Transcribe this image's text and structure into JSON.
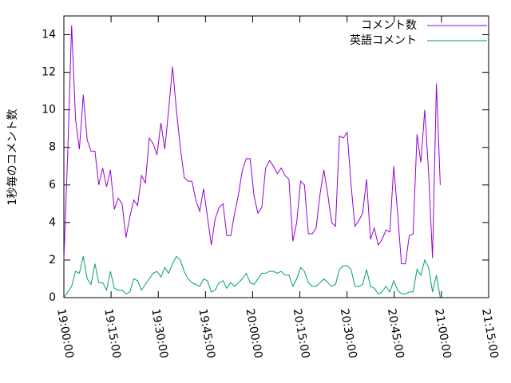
{
  "chart_data": {
    "type": "line",
    "ylabel": "1秒毎のコメント数",
    "x": [
      "19:00:00",
      "19:01:14",
      "19:02:28",
      "19:03:42",
      "19:04:56",
      "19:06:10",
      "19:07:24",
      "19:08:38",
      "19:09:52",
      "19:11:06",
      "19:12:20",
      "19:13:34",
      "19:14:48",
      "19:16:02",
      "19:17:16",
      "19:18:30",
      "19:19:44",
      "19:20:58",
      "19:22:12",
      "19:23:26",
      "19:24:40",
      "19:25:54",
      "19:27:08",
      "19:28:22",
      "19:29:36",
      "19:30:50",
      "19:32:04",
      "19:33:18",
      "19:34:32",
      "19:35:46",
      "19:37:00",
      "19:38:14",
      "19:39:28",
      "19:40:42",
      "19:41:56",
      "19:43:10",
      "19:44:24",
      "19:45:38",
      "19:46:52",
      "19:48:06",
      "19:49:20",
      "19:50:34",
      "19:51:48",
      "19:53:02",
      "19:54:16",
      "19:55:30",
      "19:56:44",
      "19:57:58",
      "19:59:12",
      "20:00:26",
      "20:01:40",
      "20:02:54",
      "20:04:08",
      "20:05:22",
      "20:06:36",
      "20:07:50",
      "20:09:04",
      "20:10:18",
      "20:11:32",
      "20:12:46",
      "20:14:00",
      "20:15:14",
      "20:16:28",
      "20:17:42",
      "20:18:56",
      "20:20:10",
      "20:21:24",
      "20:22:38",
      "20:23:52",
      "20:25:06",
      "20:26:20",
      "20:27:34",
      "20:28:48",
      "20:30:02",
      "20:31:16",
      "20:32:30",
      "20:33:44",
      "20:34:58",
      "20:36:12",
      "20:37:26",
      "20:38:40",
      "20:39:54",
      "20:41:08",
      "20:42:22",
      "20:43:36",
      "20:44:50",
      "20:46:04",
      "20:47:18",
      "20:48:32",
      "20:49:46",
      "20:51:00",
      "20:52:14",
      "20:53:28",
      "20:54:42",
      "20:55:56",
      "20:57:10",
      "20:58:24",
      "20:59:38"
    ],
    "series": [
      {
        "name": "コメント数",
        "color": "#9400d3",
        "values": [
          2.0,
          7.8,
          14.5,
          9.5,
          7.9,
          10.8,
          8.4,
          7.8,
          7.8,
          6.0,
          6.9,
          5.9,
          6.8,
          4.7,
          5.3,
          5.0,
          3.2,
          4.3,
          5.2,
          4.9,
          6.5,
          6.1,
          8.5,
          8.2,
          7.6,
          9.3,
          7.9,
          10.0,
          12.3,
          10.0,
          8.0,
          6.4,
          6.2,
          6.2,
          5.2,
          4.6,
          5.8,
          4.3,
          2.8,
          4.2,
          4.8,
          5.0,
          3.3,
          3.3,
          4.5,
          5.5,
          6.8,
          7.4,
          7.4,
          5.4,
          4.5,
          4.8,
          6.9,
          7.3,
          7.0,
          6.6,
          6.9,
          6.5,
          6.3,
          3.0,
          4.0,
          6.2,
          6.0,
          3.4,
          3.4,
          3.7,
          5.5,
          6.8,
          5.5,
          4.0,
          3.8,
          8.6,
          8.5,
          8.8,
          6.0,
          3.8,
          4.1,
          4.5,
          6.3,
          3.1,
          3.7,
          2.8,
          3.1,
          3.6,
          3.5,
          7.0,
          4.5,
          1.8,
          1.8,
          3.3,
          3.4,
          8.7,
          7.2,
          10.0,
          6.6,
          2.1,
          11.4,
          6.0
        ]
      },
      {
        "name": "英語コメント",
        "color": "#009e73",
        "values": [
          0.0,
          0.3,
          0.6,
          1.4,
          1.3,
          2.2,
          1.0,
          0.7,
          1.8,
          0.8,
          0.8,
          0.4,
          1.4,
          0.5,
          0.4,
          0.4,
          0.2,
          0.3,
          1.0,
          0.9,
          0.4,
          0.7,
          1.0,
          1.3,
          1.4,
          1.1,
          1.6,
          1.3,
          1.8,
          2.2,
          2.0,
          1.4,
          1.0,
          0.8,
          0.7,
          0.6,
          1.0,
          0.9,
          0.3,
          0.4,
          0.8,
          0.9,
          0.5,
          0.8,
          0.6,
          0.8,
          1.0,
          1.3,
          0.8,
          0.7,
          1.0,
          1.3,
          1.3,
          1.4,
          1.4,
          1.3,
          1.4,
          1.2,
          1.2,
          0.6,
          1.0,
          1.6,
          1.4,
          0.8,
          0.6,
          0.6,
          0.8,
          1.0,
          0.8,
          0.6,
          0.7,
          1.5,
          1.7,
          1.7,
          1.5,
          0.6,
          0.6,
          0.7,
          1.5,
          0.6,
          0.5,
          0.2,
          0.3,
          0.6,
          0.3,
          0.9,
          0.4,
          0.2,
          0.2,
          0.3,
          0.3,
          1.5,
          1.2,
          2.0,
          1.6,
          0.3,
          1.2,
          0.0
        ]
      }
    ],
    "xlim": [
      "19:00:00",
      "21:15:00"
    ],
    "xticks": [
      "19:00:00",
      "19:15:00",
      "19:30:00",
      "19:45:00",
      "20:00:00",
      "20:15:00",
      "20:30:00",
      "20:45:00",
      "21:00:00",
      "21:15:00"
    ],
    "ylim": [
      0,
      15
    ],
    "yticks": [
      0,
      2,
      4,
      6,
      8,
      10,
      12,
      14
    ],
    "legend": "top-right"
  }
}
